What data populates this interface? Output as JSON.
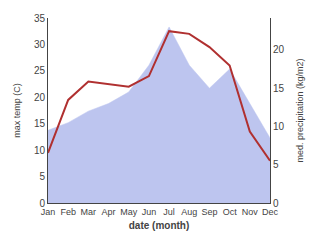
{
  "chart_data": {
    "type": "line",
    "categories": [
      "Jan",
      "Feb",
      "Mar",
      "Apr",
      "May",
      "Jun",
      "Jul",
      "Aug",
      "Sep",
      "Oct",
      "Nov",
      "Dec"
    ],
    "series": [
      {
        "type": "area",
        "color": "#bdc5ef",
        "axis": "y2",
        "values": [
          9.5,
          10.5,
          12.0,
          13.0,
          14.5,
          18.0,
          23.0,
          18.0,
          15.0,
          17.5,
          13.0,
          8.5
        ]
      },
      {
        "type": "line",
        "color": "#b03030",
        "values": [
          9.5,
          19.5,
          23.0,
          22.5,
          22.0,
          24.0,
          32.5,
          32.0,
          29.5,
          26.0,
          13.5,
          8.0
        ]
      }
    ],
    "xlabel": "date (month)",
    "ylabel": "max temp (C)",
    "y2label": "med. precipitation (kg/m2)",
    "ylim": [
      0,
      35
    ],
    "yticks": [
      0,
      5,
      10,
      15,
      20,
      25,
      30,
      35
    ],
    "y2lim": [
      0,
      24.17
    ],
    "y2ticks": [
      0,
      5,
      10,
      15,
      20
    ],
    "grid": false
  }
}
